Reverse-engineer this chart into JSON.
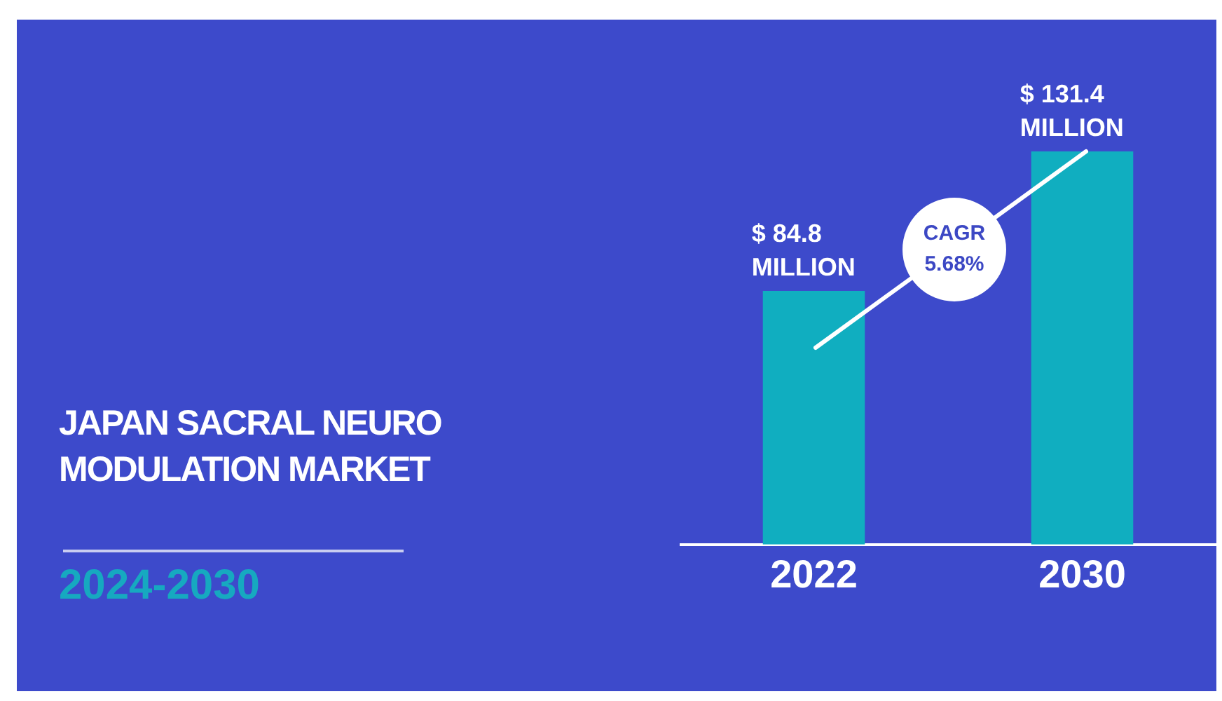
{
  "chart_data": {
    "type": "bar",
    "title": "JAPAN SACRAL NEURO MODULATION MARKET",
    "subtitle": "2024-2030",
    "categories": [
      "2022",
      "2030"
    ],
    "values": [
      84.8,
      131.4
    ],
    "color": "#10aec0",
    "value_labels": [
      "$ 84.8 MILLION",
      "$ 131.4 MILLION"
    ],
    "annotations": [
      "CAGR 5.68%"
    ],
    "tick_labels": "x"
  }
}
